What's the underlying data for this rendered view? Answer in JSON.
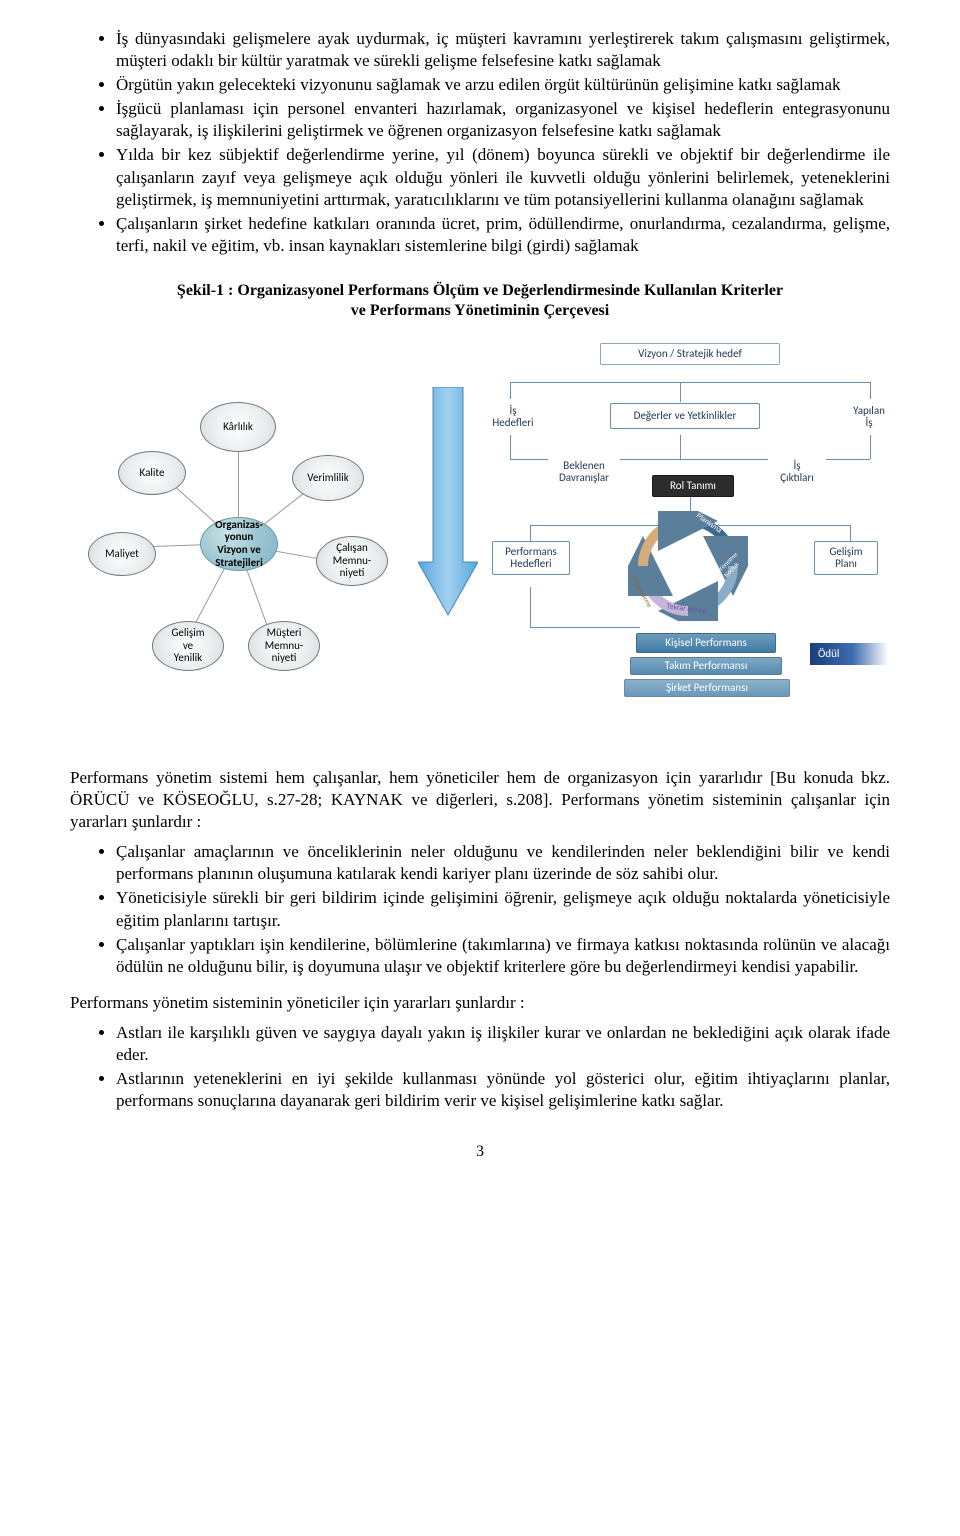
{
  "bullets_top": [
    "İş dünyasındaki gelişmelere ayak uydurmak, iç müşteri kavramını yerleştirerek takım çalışmasını geliştirmek, müşteri odaklı bir kültür yaratmak ve sürekli gelişme felsefesine katkı sağlamak",
    "Örgütün yakın gelecekteki vizyonunu sağlamak ve arzu edilen örgüt kültürünün gelişimine katkı sağlamak",
    "İşgücü planlaması için personel envanteri hazırlamak, organizasyonel ve kişisel hedeflerin entegrasyonunu sağlayarak, iş ilişkilerini geliştirmek ve öğrenen organizasyon felsefesine katkı sağlamak",
    "Yılda bir kez sübjektif değerlendirme yerine, yıl (dönem) boyunca sürekli ve objektif bir değerlendirme ile çalışanların zayıf veya gelişmeye açık olduğu yönleri ile kuvvetli olduğu yönlerini belirlemek, yeteneklerini geliştirmek, iş memnuniyetini arttırmak, yaratıcılıklarını ve tüm potansiyellerini kullanma olanağını sağlamak",
    "Çalışanların şirket hedefine katkıları oranında ücret, prim, ödüllendirme, onurlandırma, cezalandırma, gelişme, terfi, nakil ve eğitim, vb. insan kaynakları sistemlerine bilgi (girdi) sağlamak"
  ],
  "figure_caption_1": "Şekil-1 : Organizasyonel Performans Ölçüm ve Değerlendirmesinde Kullanılan Kriterler",
  "figure_caption_2": "ve Performans Yönetiminin Çerçevesi",
  "left_cluster": {
    "center": "Organizas-\nyonun\nVizyon ve\nStratejileri",
    "nodes": {
      "karlilik": "Kârlılık",
      "verimlilik": "Verimlilik",
      "calisan_mem": "Çalışan\nMemnu-\nniyeti",
      "musteri_mem": "Müşteri\nMemnu-\nniyeti",
      "gelisim_yenilik": "Gelişim\nve\nYenilik",
      "maliyet": "Maliyet",
      "kalite": "Kalite"
    }
  },
  "right_diagram": {
    "vizyon": "Vizyon / Stratejik hedef",
    "is_hedefleri": "İş\nHedefleri",
    "degerler": "Değerler ve Yetkinlikler",
    "yapilan_is": "Yapılan\nİş",
    "beklenen_davranislar": "Beklenen\nDavranışlar",
    "is_ciktilari": "İş\nÇıktıları",
    "rol_tanimi": "Rol Tanımı",
    "performans_hedefleri": "Performans\nHedefleri",
    "gelisim_plani": "Gelişim\nPlanı",
    "cycle": {
      "planlama": "Planlama",
      "yonetme": "Yönetme ve Koçluk",
      "tekrar": "Tekrar etmek",
      "odullendirme": "Ödüllendirme"
    },
    "kisisel_perf": "Kişisel Performans",
    "takim_perf": "Takım Performansı",
    "sirket_perf": "Şirket Performansı",
    "odul": "Ödül"
  },
  "para_mid": "Performans yönetim sistemi hem çalışanlar, hem yöneticiler hem de organizasyon için yararlıdır [Bu konuda bkz. ÖRÜCÜ ve KÖSEOĞLU, s.27-28; KAYNAK ve diğerleri, s.208]. Performans yönetim sisteminin çalışanlar için yararları şunlardır :",
  "bullets_mid_1": [
    "Çalışanlar amaçlarının ve önceliklerinin neler olduğunu ve kendilerinden neler beklendiğini bilir ve kendi performans planının oluşumuna katılarak kendi kariyer planı üzerinde de söz sahibi olur.",
    "Yöneticisiyle sürekli bir geri bildirim içinde gelişimini öğrenir, gelişmeye açık olduğu noktalarda yöneticisiyle eğitim planlarını tartışır.",
    "Çalışanlar yaptıkları işin kendilerine, bölümlerine (takımlarına) ve firmaya katkısı noktasında rolünün ve alacağı ödülün ne olduğunu bilir, iş doyumuna ulaşır ve objektif kriterlere göre bu değerlendirmeyi kendisi yapabilir."
  ],
  "para_mid2": "Performans yönetim sisteminin yöneticiler için yararları şunlardır :",
  "bullets_mid_2": [
    "Astları ile karşılıklı güven ve saygıya dayalı yakın iş ilişkiler kurar ve onlardan ne beklediğini açık olarak ifade eder.",
    "Astlarının yeteneklerini en iyi şekilde kullanması yönünde yol gösterici olur, eğitim ihtiyaçlarını planlar, performans sonuçlarına dayanarak geri bildirim verir ve kişisel gelişimlerine katkı sağlar."
  ],
  "page_number": "3"
}
